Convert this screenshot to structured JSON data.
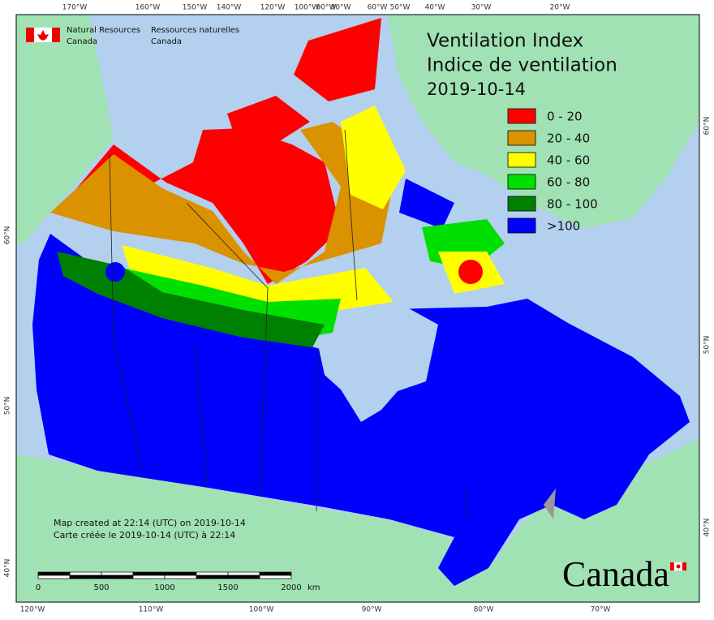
{
  "header": {
    "agency_en": [
      "Natural Resources",
      "Canada"
    ],
    "agency_fr": [
      "Ressources naturelles",
      "Canada"
    ]
  },
  "title": [
    "Ventilation Index",
    "Indice de ventilation",
    "2019-10-14"
  ],
  "legend": [
    {
      "label": "0 - 20",
      "color": "#ff0000"
    },
    {
      "label": "20 - 40",
      "color": "#da9200"
    },
    {
      "label": "40 - 60",
      "color": "#ffff00"
    },
    {
      "label": "60 - 80",
      "color": "#00e000"
    },
    {
      "label": "80 - 100",
      "color": "#008000"
    },
    {
      "label": ">100",
      "color": "#0000ff"
    }
  ],
  "graticule": {
    "top": [
      "170°W",
      "160°W",
      "150°W",
      "140°W",
      "120°W",
      "100°W",
      "90°W",
      "80°W",
      "60°W",
      "50°W",
      "40°W",
      "30°W",
      "20°W"
    ],
    "bottom": [
      "120°W",
      "110°W",
      "100°W",
      "90°W",
      "80°W",
      "70°W"
    ],
    "left": [
      "60°N",
      "50°N",
      "40°N"
    ],
    "right": [
      "60°N",
      "50°N",
      "40°N"
    ]
  },
  "credits": [
    "Map created at 22:14 (UTC) on 2019-10-14",
    "Carte créée le 2019-10-14 (UTC) à 22:14"
  ],
  "scale_bar": {
    "ticks": [
      0,
      500,
      1000,
      1500,
      2000
    ],
    "unit": "km"
  },
  "wordmark": "Canada"
}
